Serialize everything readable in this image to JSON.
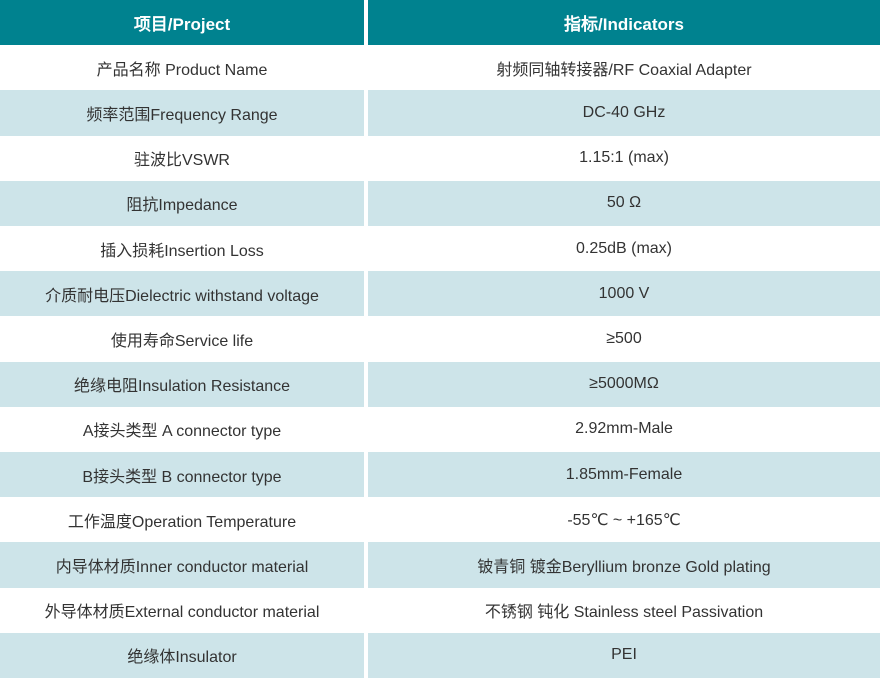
{
  "table": {
    "columns": [
      {
        "label": "项目/Project"
      },
      {
        "label": "指标/Indicators"
      }
    ],
    "rows": [
      {
        "project": "产品名称 Product Name",
        "indicator": "射频同轴转接器/RF Coaxial Adapter"
      },
      {
        "project": "频率范围Frequency Range",
        "indicator": "DC-40 GHz"
      },
      {
        "project": "驻波比VSWR",
        "indicator": "1.15:1 (max)"
      },
      {
        "project": "阻抗Impedance",
        "indicator": "50 Ω"
      },
      {
        "project": "插入损耗Insertion Loss",
        "indicator": "0.25dB (max)"
      },
      {
        "project": "介质耐电压Dielectric withstand voltage",
        "indicator": "1000 V"
      },
      {
        "project": "使用寿命Service life",
        "indicator": "≥500"
      },
      {
        "project": "绝缘电阻Insulation Resistance",
        "indicator": "≥5000MΩ"
      },
      {
        "project": "A接头类型 A connector type",
        "indicator": "2.92mm-Male"
      },
      {
        "project": "B接头类型 B connector type",
        "indicator": "1.85mm-Female"
      },
      {
        "project": "工作温度Operation Temperature",
        "indicator": "-55℃ ~ +165℃"
      },
      {
        "project": "内导体材质Inner conductor material",
        "indicator": "铍青铜 镀金Beryllium bronze Gold plating"
      },
      {
        "project": "外导体材质External conductor material",
        "indicator": "不锈钢 钝化 Stainless steel Passivation"
      },
      {
        "project": "绝缘体Insulator",
        "indicator": "PEI"
      }
    ]
  },
  "colors": {
    "header_bg": "#00828F",
    "header_text": "#ffffff",
    "row_alt_bg": "#cde4e9",
    "text": "#333333"
  }
}
